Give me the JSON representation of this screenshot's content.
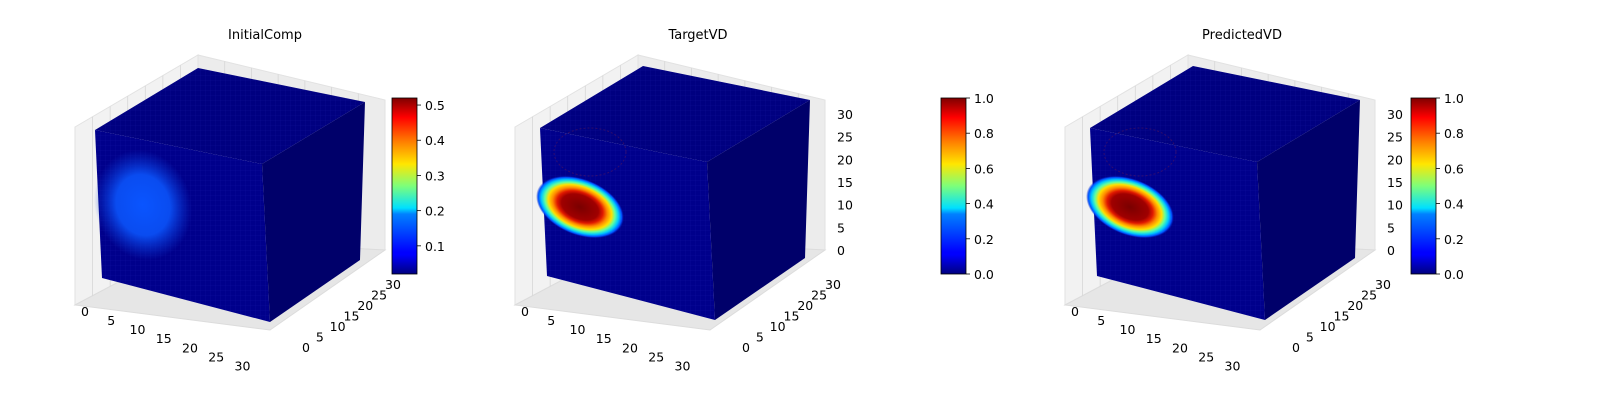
{
  "chart_data": [
    {
      "type": "voxel-3d",
      "title": "InitialComp",
      "x_ticks": [
        "0",
        "5",
        "10",
        "15",
        "20",
        "25",
        "30"
      ],
      "y_ticks": [
        "0",
        "5",
        "10",
        "15",
        "20",
        "25",
        "30"
      ],
      "z_ticks": [],
      "xlim": [
        0,
        32
      ],
      "ylim": [
        0,
        32
      ],
      "zlim": [
        0,
        32
      ],
      "colormap": "jet",
      "colorbar": {
        "ticks": [
          "0.1",
          "0.2",
          "0.3",
          "0.4",
          "0.5"
        ],
        "values": [
          0.1,
          0.2,
          0.3,
          0.4,
          0.5
        ],
        "range": [
          0.02,
          0.52
        ]
      },
      "blob": {
        "value": 0.18
      }
    },
    {
      "type": "voxel-3d",
      "title": "TargetVD",
      "x_ticks": [
        "0",
        "5",
        "10",
        "15",
        "20",
        "25",
        "30"
      ],
      "y_ticks": [
        "0",
        "5",
        "10",
        "15",
        "20",
        "25",
        "30"
      ],
      "z_ticks": [
        "0",
        "5",
        "10",
        "15",
        "20",
        "25",
        "30"
      ],
      "xlim": [
        0,
        32
      ],
      "ylim": [
        0,
        32
      ],
      "zlim": [
        0,
        32
      ],
      "colormap": "jet",
      "colorbar": {
        "ticks": [
          "0.0",
          "0.2",
          "0.4",
          "0.6",
          "0.8",
          "1.0"
        ],
        "values": [
          0.0,
          0.2,
          0.4,
          0.6,
          0.8,
          1.0
        ],
        "range": [
          0.0,
          1.0
        ]
      },
      "blob": {
        "value": 1.0
      }
    },
    {
      "type": "voxel-3d",
      "title": "PredictedVD",
      "x_ticks": [
        "0",
        "5",
        "10",
        "15",
        "20",
        "25",
        "30"
      ],
      "y_ticks": [
        "0",
        "5",
        "10",
        "15",
        "20",
        "25",
        "30"
      ],
      "z_ticks": [
        "0",
        "5",
        "10",
        "15",
        "20",
        "25",
        "30"
      ],
      "xlim": [
        0,
        32
      ],
      "ylim": [
        0,
        32
      ],
      "zlim": [
        0,
        32
      ],
      "colormap": "jet",
      "colorbar": {
        "ticks": [
          "0.0",
          "0.2",
          "0.4",
          "0.6",
          "0.8",
          "1.0"
        ],
        "values": [
          0.0,
          0.2,
          0.4,
          0.6,
          0.8,
          1.0
        ],
        "range": [
          0.0,
          1.0
        ]
      },
      "blob": {
        "value": 1.0
      }
    }
  ]
}
